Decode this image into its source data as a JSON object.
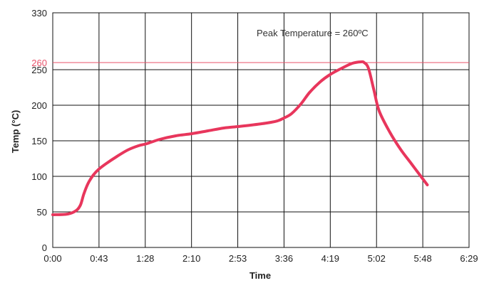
{
  "chart_data": {
    "type": "line",
    "xlabel": "Time",
    "ylabel": "Temp (°C)",
    "x_tick_labels": [
      "0:00",
      "0:43",
      "1:28",
      "2:10",
      "2:53",
      "3:36",
      "4:19",
      "5:02",
      "5:48",
      "6:29"
    ],
    "y_ticks": [
      0,
      50,
      100,
      150,
      200,
      250,
      330
    ],
    "y_tick_labels": [
      "0",
      "50",
      "100",
      "150",
      "200",
      "250",
      "330"
    ],
    "xlim": [
      "0:00",
      "6:29"
    ],
    "ylim": [
      0,
      330
    ],
    "grid": true,
    "reference_line": {
      "y": 260,
      "label": "260",
      "color": "#e8526a"
    },
    "annotation": "Peak Temperature = 260ºC",
    "series": [
      {
        "color": "#e8365c",
        "x": [
          "0:00",
          "0:14",
          "0:22",
          "0:26",
          "0:29",
          "0:33",
          "0:38",
          "0:43",
          "0:50",
          "1:00",
          "1:10",
          "1:20",
          "1:28",
          "1:40",
          "1:55",
          "2:10",
          "2:25",
          "2:40",
          "2:53",
          "3:05",
          "3:20",
          "3:30",
          "3:36",
          "3:43",
          "3:52",
          "4:00",
          "4:10",
          "4:19",
          "4:30",
          "4:40",
          "4:48",
          "4:51",
          "4:55",
          "5:00",
          "5:05",
          "5:15",
          "5:25",
          "5:35",
          "5:45",
          "5:50"
        ],
        "y": [
          46,
          47,
          52,
          60,
          75,
          90,
          102,
          110,
          118,
          128,
          137,
          143,
          146,
          152,
          157,
          160,
          164,
          168,
          170,
          172,
          175,
          178,
          182,
          188,
          202,
          218,
          233,
          243,
          252,
          259,
          261,
          260,
          252,
          222,
          192,
          162,
          138,
          118,
          98,
          88
        ]
      }
    ]
  }
}
